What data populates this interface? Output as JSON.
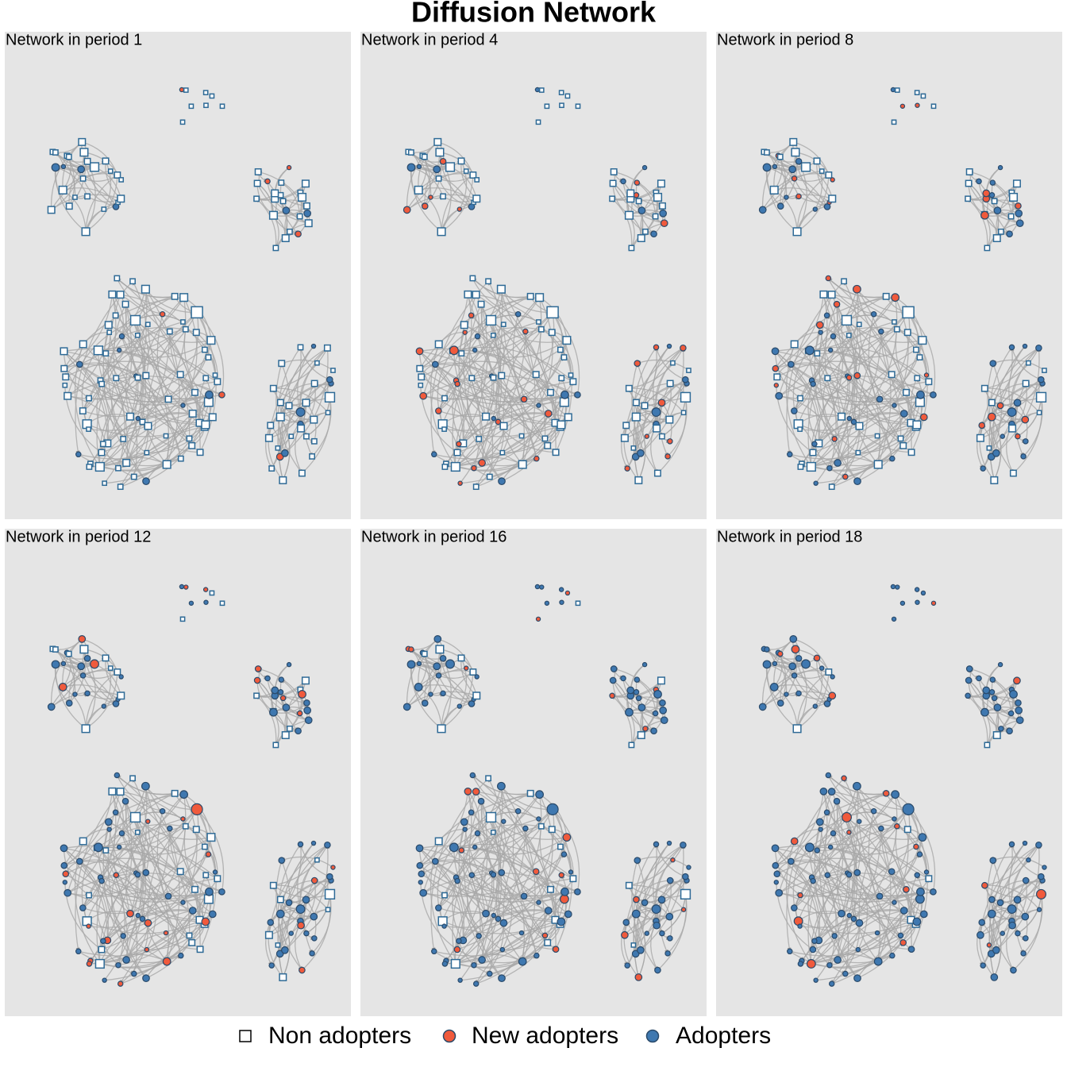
{
  "title": "Diffusion Network",
  "panels": [
    {
      "title": "Network in period 1"
    },
    {
      "title": "Network in period 4"
    },
    {
      "title": "Network in period 8"
    },
    {
      "title": "Network in period 12"
    },
    {
      "title": "Network in period 16"
    },
    {
      "title": "Network in period 18"
    }
  ],
  "legend": [
    {
      "label": "Non adopters"
    },
    {
      "label": "New adopters"
    },
    {
      "label": "Adopters"
    }
  ]
}
